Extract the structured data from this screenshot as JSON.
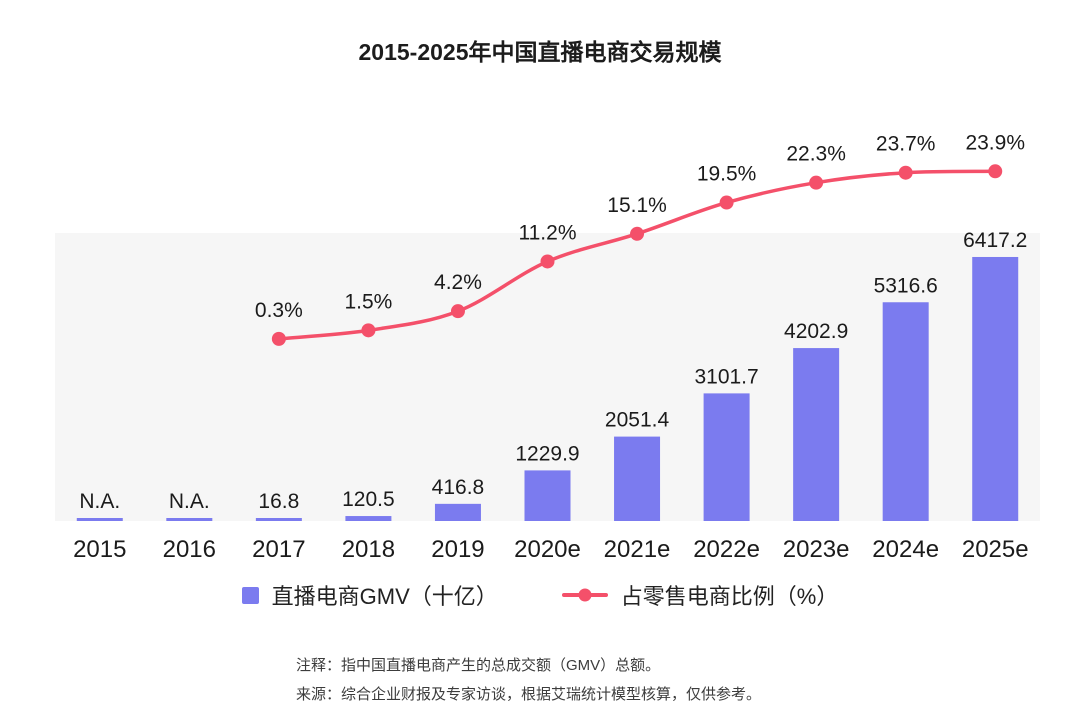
{
  "title": "2015-2025年中国直播电商交易规模",
  "chart_data": {
    "type": "bar",
    "subtype": "combo-bar-line",
    "title": "2015-2025年中国直播电商交易规模",
    "categories": [
      "2015",
      "2016",
      "2017",
      "2018",
      "2019",
      "2020e",
      "2021e",
      "2022e",
      "2023e",
      "2024e",
      "2025e"
    ],
    "series": [
      {
        "name": "直播电商GMV（十亿）",
        "type": "bar",
        "color": "#7b7bef",
        "values": [
          null,
          null,
          16.8,
          120.5,
          416.8,
          1229.9,
          2051.4,
          3101.7,
          4202.9,
          5316.6,
          6417.2
        ],
        "labels": [
          "N.A.",
          "N.A.",
          "16.8",
          "120.5",
          "416.8",
          "1229.9",
          "2051.4",
          "3101.7",
          "4202.9",
          "5316.6",
          "6417.2"
        ]
      },
      {
        "name": "占零售电商比例（%）",
        "type": "line",
        "color": "#f4506a",
        "values": [
          null,
          null,
          0.3,
          1.5,
          4.2,
          11.2,
          15.1,
          19.5,
          22.3,
          23.7,
          23.9
        ],
        "labels": [
          "",
          "",
          "0.3%",
          "1.5%",
          "4.2%",
          "11.2%",
          "15.1%",
          "19.5%",
          "22.3%",
          "23.7%",
          "23.9%"
        ]
      }
    ],
    "ylim_bar": [
      0,
      7000
    ],
    "ylim_line_pct": [
      0,
      40
    ],
    "grid": false,
    "axes_hidden": true,
    "plot_bg": "#f6f6f6",
    "legend_position": "bottom"
  },
  "legend": {
    "items": [
      {
        "label": "直播电商GMV（十亿）",
        "color": "#7b7bef",
        "marker": "square"
      },
      {
        "label": "占零售电商比例（%）",
        "color": "#f4506a",
        "marker": "line-dot"
      }
    ]
  },
  "notes": {
    "line1": "注释：指中国直播电商产生的总成交额（GMV）总额。",
    "line2": "来源：综合企业财报及专家访谈，根据艾瑞统计模型核算，仅供参考。"
  }
}
